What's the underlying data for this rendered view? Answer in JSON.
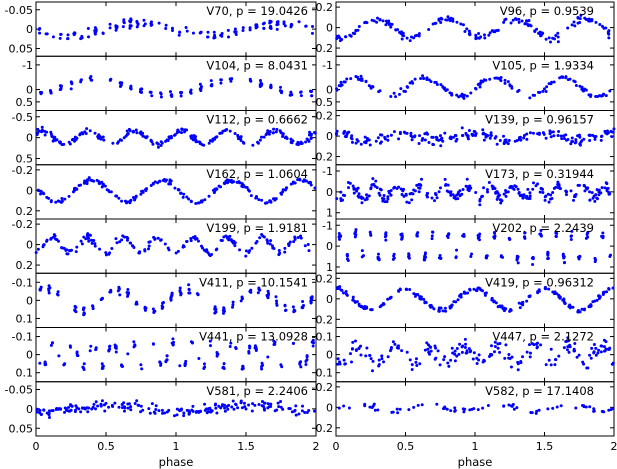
{
  "chart_data": {
    "type": "scatter",
    "layout": {
      "rows": 8,
      "cols": 2
    },
    "xlabel": "phase",
    "xlim": [
      0,
      2
    ],
    "xticks": [
      0,
      0.5,
      1,
      1.5,
      2
    ],
    "xtick_labels": [
      "0",
      "0.5",
      "1",
      "1.5",
      "2"
    ],
    "y_inverted": true,
    "marker_color": "#0000ff",
    "panels": [
      {
        "label": "V70, p = 19.0426",
        "ylim": [
          -0.07,
          0.07
        ],
        "yticks": [
          -0.05,
          0,
          0.05
        ],
        "ytick_labels": [
          "-0.05",
          "0",
          "0.05"
        ]
      },
      {
        "label": "V96, p = 0.9539",
        "ylim": [
          -0.25,
          0.28
        ],
        "yticks": [
          -0.2,
          0,
          0.2
        ],
        "ytick_labels": [
          "-0.2",
          "0",
          "0.2"
        ]
      },
      {
        "label": "V104, p = 8.0431",
        "ylim": [
          -1.35,
          0.85
        ],
        "yticks": [
          -1,
          0,
          0.5
        ],
        "ytick_labels": [
          "-1",
          "0",
          "0.5"
        ]
      },
      {
        "label": "V105, p = 1.9334",
        "ylim": [
          -1.35,
          0.85
        ],
        "yticks": [
          -1,
          0,
          0.5
        ],
        "ytick_labels": [
          "-1",
          "0",
          "0.5"
        ]
      },
      {
        "label": "V112, p = 0.6662",
        "ylim": [
          -0.65,
          0.65
        ],
        "yticks": [
          -0.5,
          0,
          0.5
        ],
        "ytick_labels": [
          "-0.5",
          "0",
          "0.5"
        ]
      },
      {
        "label": "V139, p = 0.96157",
        "ylim": [
          -0.25,
          0.28
        ],
        "yticks": [
          -0.2,
          0,
          0.2
        ],
        "ytick_labels": [
          "-0.2",
          "0",
          "0.2"
        ]
      },
      {
        "label": "V162, p = 1.0604",
        "ylim": [
          -0.25,
          0.28
        ],
        "yticks": [
          -0.2,
          0,
          0.2
        ],
        "ytick_labels": [
          "-0.2",
          "0",
          "0.2"
        ]
      },
      {
        "label": "V173, p = 0.31944",
        "ylim": [
          -1.3,
          1.3
        ],
        "yticks": [
          -1,
          0,
          1
        ],
        "ytick_labels": [
          "-1",
          "0",
          "1"
        ]
      },
      {
        "label": "V199, p = 1.9181",
        "ylim": [
          -0.25,
          0.28
        ],
        "yticks": [
          -0.2,
          0,
          0.2
        ],
        "ytick_labels": [
          "-0.2",
          "0",
          "0.2"
        ]
      },
      {
        "label": "V202, p = 2.2439",
        "ylim": [
          -1.3,
          1.3
        ],
        "yticks": [
          -1,
          0,
          1
        ],
        "ytick_labels": [
          "-1",
          "0",
          "1"
        ]
      },
      {
        "label": "V411, p = 10.1541",
        "ylim": [
          -0.15,
          0.15
        ],
        "yticks": [
          -0.1,
          0,
          0.1
        ],
        "ytick_labels": [
          "-0.1",
          "0",
          "0.1"
        ]
      },
      {
        "label": "V419, p = 0.96312",
        "ylim": [
          -0.25,
          0.28
        ],
        "yticks": [
          -0.2,
          0,
          0.2
        ],
        "ytick_labels": [
          "-0.2",
          "0",
          "0.2"
        ]
      },
      {
        "label": "V441, p = 13.0928",
        "ylim": [
          -0.15,
          0.15
        ],
        "yticks": [
          -0.1,
          0,
          0.1
        ],
        "ytick_labels": [
          "-0.1",
          "0",
          "0.1"
        ]
      },
      {
        "label": "V447, p = 2.1272",
        "ylim": [
          -0.15,
          0.15
        ],
        "yticks": [
          -0.1,
          0,
          0.1
        ],
        "ytick_labels": [
          "-0.1",
          "0",
          "0.1"
        ]
      },
      {
        "label": "V581, p = 2.2406",
        "ylim": [
          -0.07,
          0.07
        ],
        "yticks": [
          -0.05,
          0,
          0.05
        ],
        "ytick_labels": [
          "-0.05",
          "0",
          "0.05"
        ]
      },
      {
        "label": "V582, p = 17.1408",
        "ylim": [
          -0.25,
          0.28
        ],
        "yticks": [
          -0.2,
          0,
          0.2
        ],
        "ytick_labels": [
          "-0.2",
          "0",
          "0.2"
        ]
      }
    ]
  }
}
